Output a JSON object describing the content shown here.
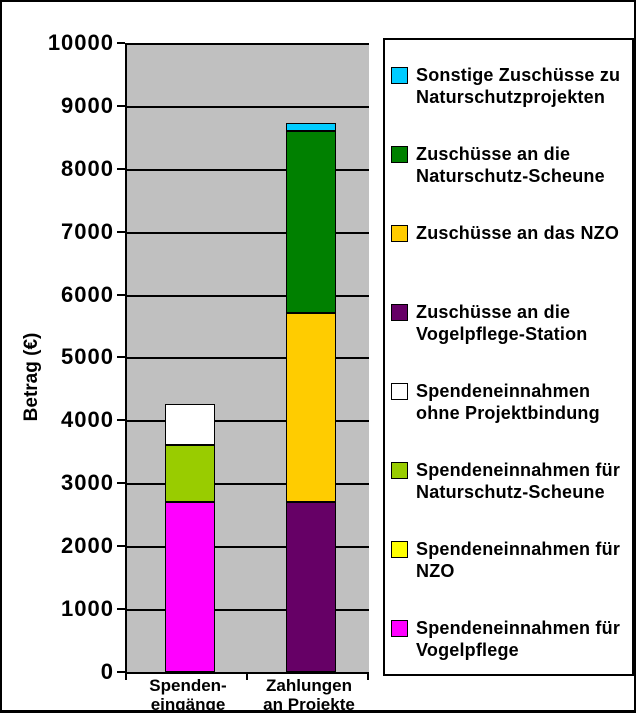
{
  "chart_data": {
    "type": "bar",
    "stacked": true,
    "title": "",
    "xlabel": "",
    "ylabel": "Betrag (€)",
    "ylim": [
      0,
      10000
    ],
    "ytick_step": 1000,
    "grid": true,
    "plot_background": "#C0C0C0",
    "legend_position": "right",
    "categories": [
      "Spenden-\neingänge",
      "Zahlungen\nan Projekte"
    ],
    "series": [
      {
        "name": "Spendeneinnahmen für Vogelpflege",
        "color": "#FF00FF",
        "values": [
          2700,
          0
        ]
      },
      {
        "name": "Spendeneinnahmen für NZO",
        "color": "#FFFF00",
        "values": [
          0,
          0
        ]
      },
      {
        "name": "Spendeneinnahmen für Naturschutz-Scheune",
        "color": "#99CC00",
        "values": [
          900,
          0
        ]
      },
      {
        "name": "Spendeneinnahmen ohne Projektbindung",
        "color": "#FFFFFF",
        "values": [
          650,
          0
        ]
      },
      {
        "name": "Zuschüsse an die Vogelpflege-Station",
        "color": "#660066",
        "values": [
          0,
          2700
        ]
      },
      {
        "name": "Zuschüsse an das NZO",
        "color": "#FFCC00",
        "values": [
          0,
          3000
        ]
      },
      {
        "name": "Zuschüsse an die Naturschutz-Scheune",
        "color": "#008000",
        "values": [
          0,
          2900
        ]
      },
      {
        "name": "Sonstige Zuschüsse zu Naturschutzprojekten",
        "color": "#00CCFF",
        "values": [
          0,
          130
        ]
      }
    ],
    "legend_items": [
      {
        "label": "Sonstige Zuschüsse zu\nNaturschutzprojekten",
        "color": "#00CCFF"
      },
      {
        "label": "Zuschüsse an die\nNaturschutz-Scheune",
        "color": "#008000"
      },
      {
        "label": "Zuschüsse an das NZO",
        "color": "#FFCC00"
      },
      {
        "label": "Zuschüsse an die\nVogelpflege-Station",
        "color": "#660066"
      },
      {
        "label": "Spendeneinnahmen\nohne Projektbindung",
        "color": "#FFFFFF"
      },
      {
        "label": "Spendeneinnahmen für\nNaturschutz-Scheune",
        "color": "#99CC00"
      },
      {
        "label": "Spendeneinnahmen für\nNZO",
        "color": "#FFFF00"
      },
      {
        "label": "Spendeneinnahmen für\nVogelpflege",
        "color": "#FF00FF"
      }
    ]
  }
}
